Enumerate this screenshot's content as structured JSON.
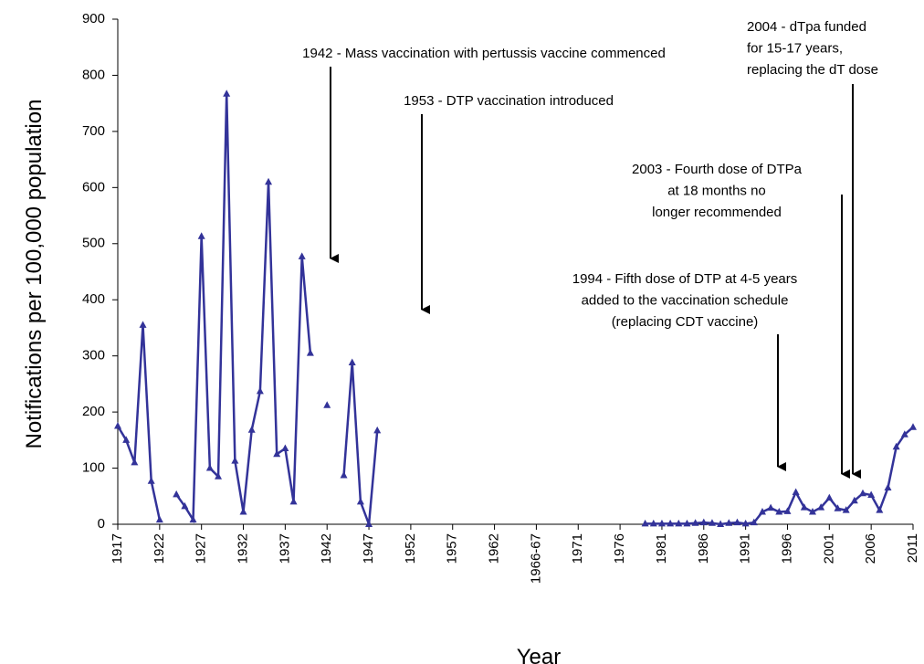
{
  "chart_data": {
    "type": "line",
    "x_label": "Year",
    "y_label": "Notifications per 100,000 population",
    "categories": [
      "1917",
      null,
      null,
      null,
      null,
      "1922",
      null,
      null,
      null,
      null,
      "1927",
      null,
      null,
      null,
      null,
      "1932",
      null,
      null,
      null,
      null,
      "1937",
      null,
      null,
      null,
      null,
      "1942",
      null,
      null,
      null,
      null,
      "1947",
      null,
      null,
      null,
      null,
      "1952",
      null,
      null,
      null,
      null,
      "1957",
      null,
      null,
      null,
      null,
      "1962",
      null,
      null,
      null,
      null,
      "1966-67",
      null,
      null,
      null,
      null,
      "1971",
      null,
      null,
      null,
      null,
      "1976",
      null,
      null,
      null,
      null,
      "1981",
      null,
      null,
      null,
      null,
      "1986",
      null,
      null,
      null,
      null,
      "1991",
      null,
      null,
      null,
      null,
      "1996",
      null,
      null,
      null,
      null,
      "2001",
      null,
      null,
      null,
      null,
      "2006",
      null,
      null,
      null,
      null,
      "2011"
    ],
    "series": [
      {
        "name": "Notifications",
        "color": "#333399",
        "values": [
          175,
          150,
          110,
          355,
          77,
          8,
          null,
          53,
          32,
          8,
          513,
          100,
          85,
          767,
          113,
          22,
          168,
          237,
          610,
          125,
          135,
          40,
          477,
          305,
          null,
          212,
          null,
          87,
          288,
          40,
          0,
          167,
          null,
          null,
          null,
          null,
          null,
          null,
          null,
          null,
          null,
          null,
          null,
          null,
          null,
          null,
          null,
          null,
          null,
          null,
          null,
          null,
          null,
          null,
          null,
          null,
          null,
          null,
          null,
          null,
          null,
          null,
          null,
          1,
          1,
          1,
          1,
          1,
          1,
          2,
          3,
          2,
          0,
          2,
          3,
          1,
          3,
          22,
          29,
          22,
          23,
          57,
          30,
          22,
          30,
          47,
          28,
          25,
          42,
          55,
          52,
          25,
          65,
          138,
          160,
          173
        ]
      }
    ],
    "ylim": [
      0,
      900
    ],
    "yticks": [
      0,
      100,
      200,
      300,
      400,
      500,
      600,
      700,
      800,
      900
    ],
    "annotations": [
      {
        "lines": [
          "1942 - Mass vaccination with pertussis vaccine commenced"
        ]
      },
      {
        "lines": [
          "1953 - DTP vaccination introduced"
        ]
      },
      {
        "lines": [
          "1994 - Fifth dose of DTP at 4-5 years",
          "added to the vaccination schedule",
          "(replacing CDT vaccine)"
        ]
      },
      {
        "lines": [
          "2003 - Fourth dose of DTPa",
          "at 18 months no",
          "longer recommended"
        ]
      },
      {
        "lines": [
          "2004 - dTpa funded",
          "for 15-17 years,",
          "replacing the dT dose"
        ]
      }
    ]
  }
}
